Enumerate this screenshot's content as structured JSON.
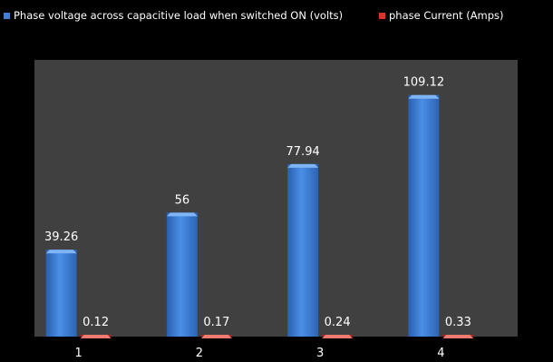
{
  "chart_data": {
    "type": "bar",
    "categories": [
      "1",
      "2",
      "3",
      "4"
    ],
    "series": [
      {
        "name": "Phase voltage across capacitive load when switched ON (volts)",
        "values": [
          39.26,
          56,
          77.94,
          109.12
        ],
        "color": "#3d7fd6"
      },
      {
        "name": "phase Current (Amps)",
        "values": [
          0.12,
          0.17,
          0.24,
          0.33
        ],
        "color": "#d9332a"
      }
    ],
    "data_labels": {
      "voltage": [
        "39.26",
        "56",
        "77.94",
        "109.12"
      ],
      "current": [
        "0.12",
        "0.17",
        "0.24",
        "0.33"
      ]
    },
    "ylim": [
      0,
      125
    ],
    "legend_position": "top",
    "grid": false,
    "plot_background": "#404040",
    "page_background": "#000000"
  }
}
